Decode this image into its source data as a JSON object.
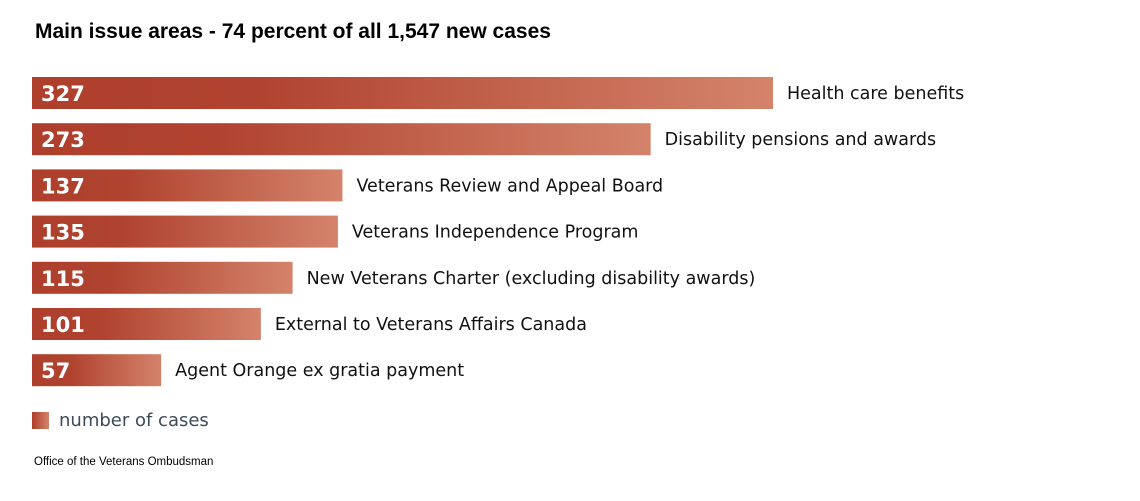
{
  "chart_data": {
    "type": "bar",
    "orientation": "horizontal",
    "title": "Main issue areas - 74 percent of all 1,547 new cases",
    "categories": [
      "Health care benefits",
      "Disability pensions and awards",
      "Veterans Review and Appeal Board",
      "Veterans Independence Program",
      "New Veterans Charter (excluding disability awards)",
      "External to Veterans Affairs Canada",
      "Agent Orange ex gratia payment"
    ],
    "values": [
      327,
      273,
      137,
      135,
      115,
      101,
      57
    ],
    "legend": "number of cases",
    "legend_position": "bottom-left",
    "xlabel": "",
    "ylabel": "",
    "xlim": [
      0,
      327
    ],
    "grid": false,
    "colors": {
      "bar_start": "#ad3f2c",
      "bar_end": "#d4836b"
    }
  },
  "source": "Office of the Veterans Ombudsman"
}
